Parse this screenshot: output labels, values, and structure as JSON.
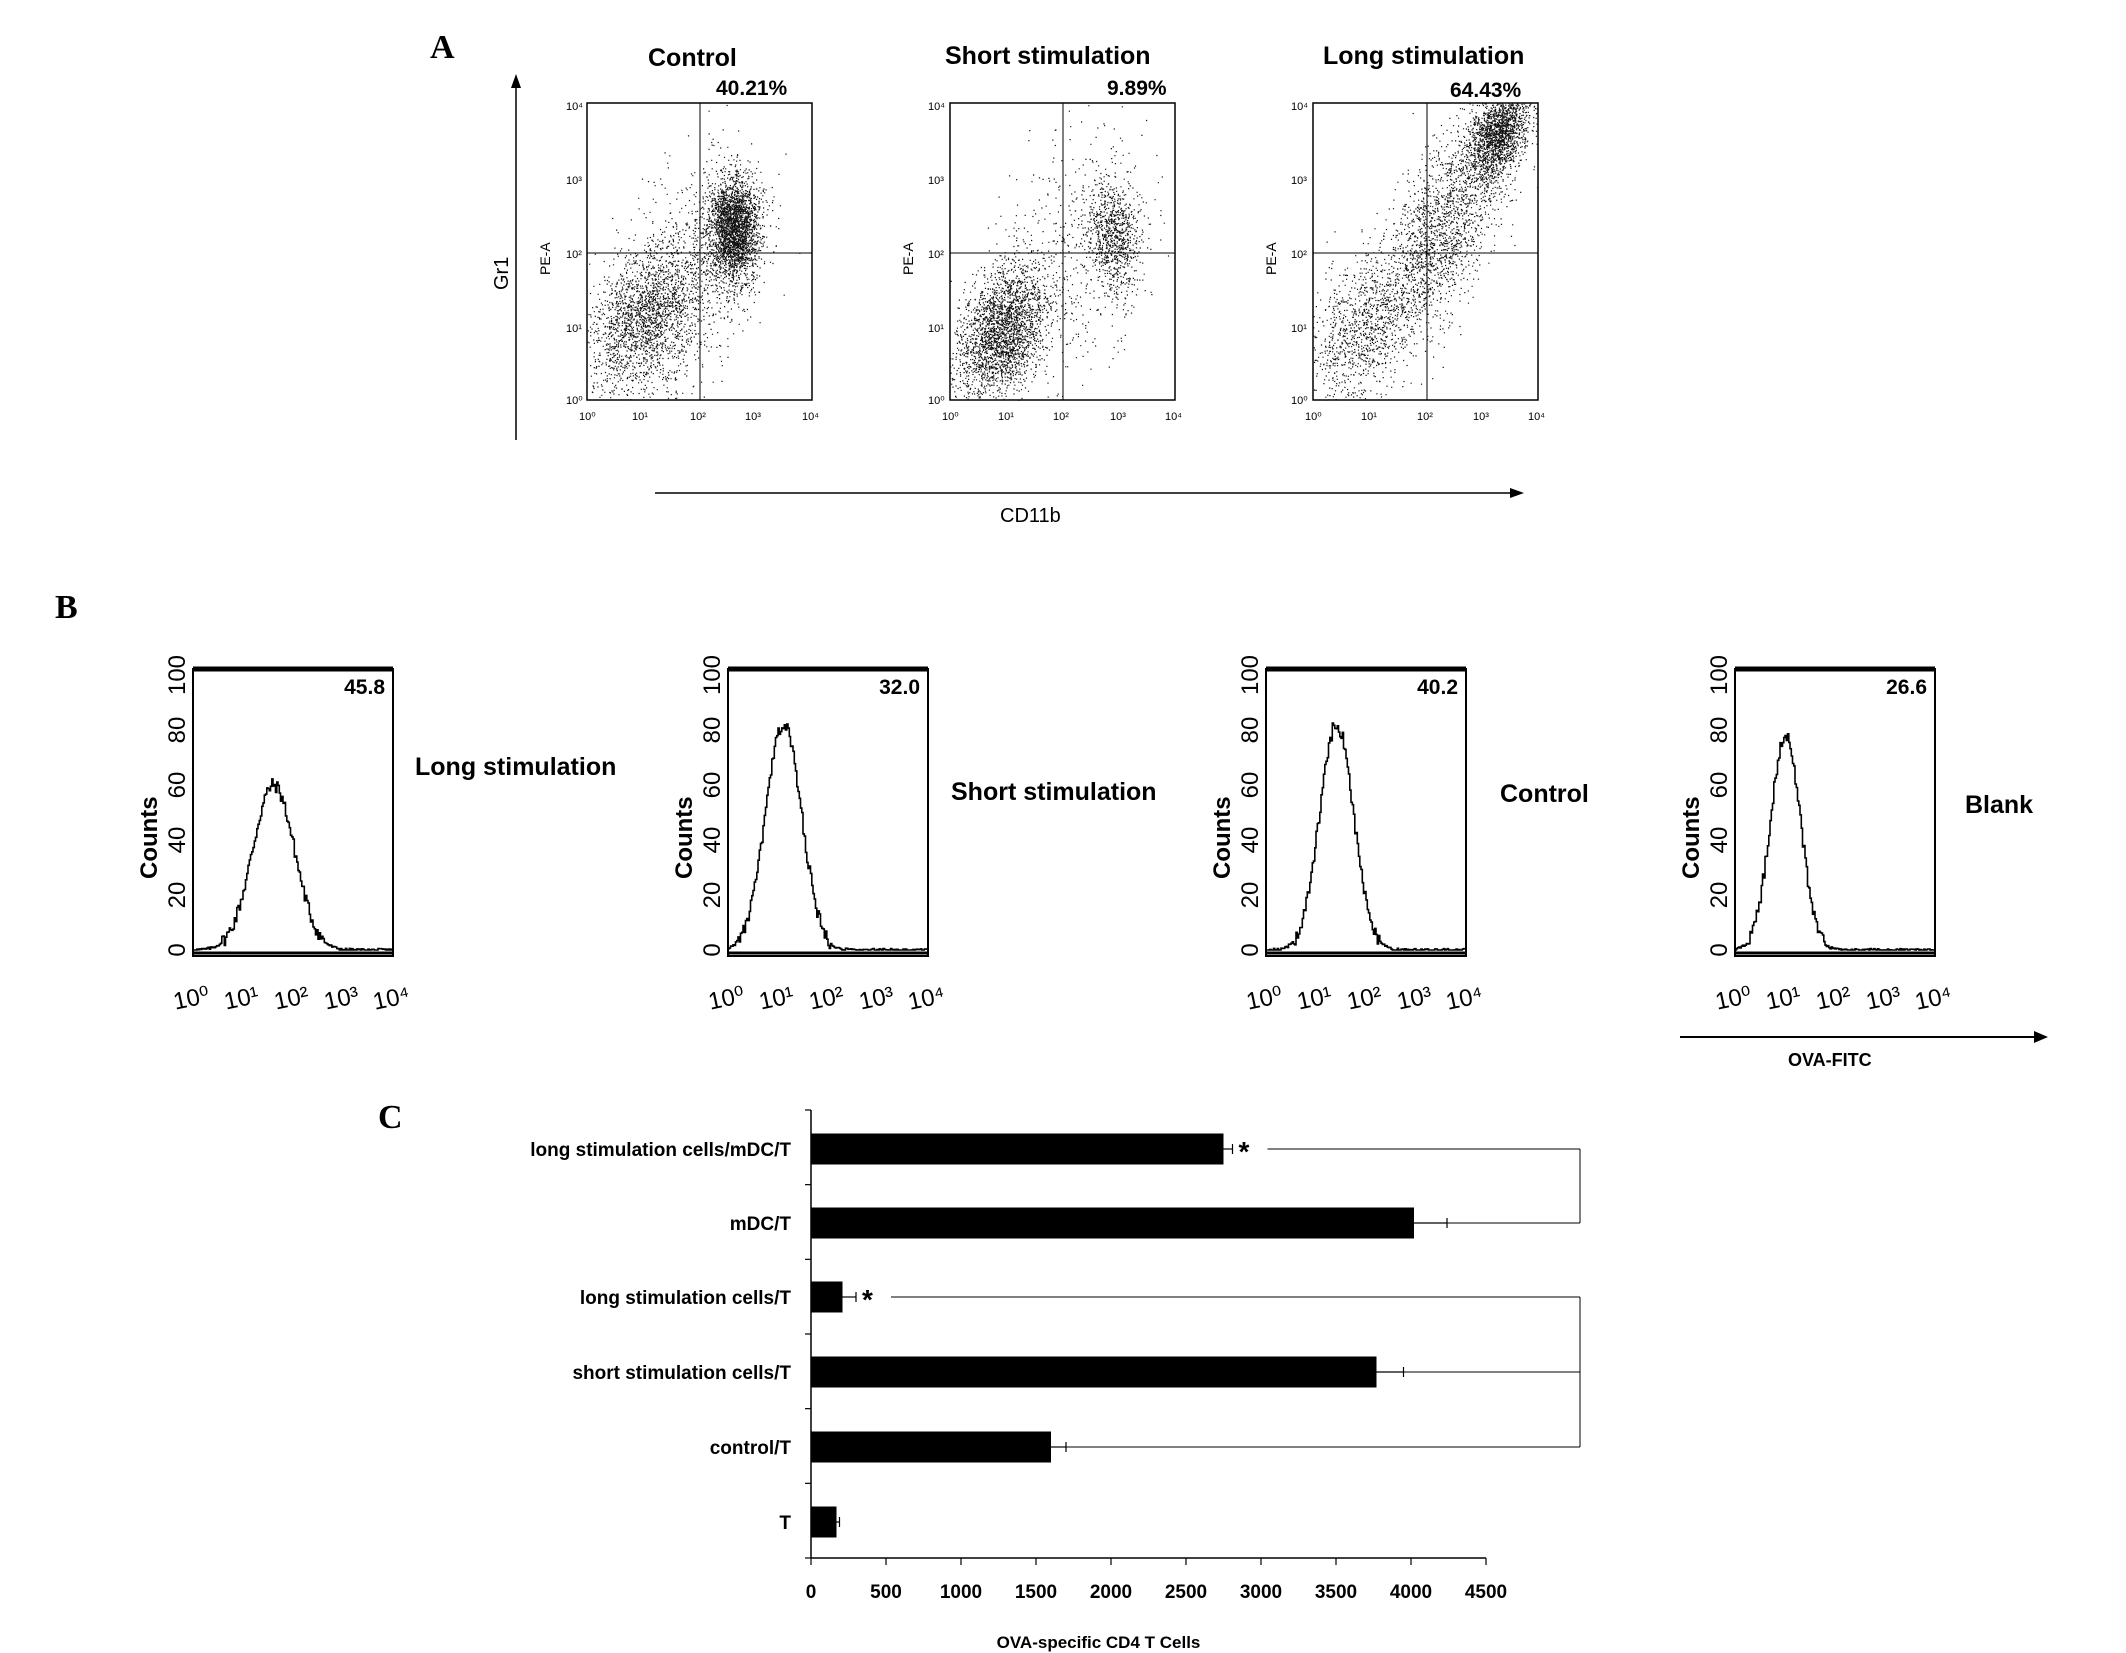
{
  "panel_labels": {
    "a": "A",
    "b": "B",
    "c": "C"
  },
  "panel_a": {
    "y_axis_label": "Gr1",
    "x_axis_label": "CD11b",
    "detector_label": "PE-A",
    "tick_labels": [
      "10⁰",
      "10¹",
      "10²",
      "10³",
      "10⁴"
    ],
    "plots": [
      {
        "title": "Control",
        "percent": "40.21%"
      },
      {
        "title": "Short  stimulation",
        "percent": "9.89%"
      },
      {
        "title": "Long stimulation",
        "percent": "64.43%"
      }
    ]
  },
  "panel_b": {
    "y_axis_label": "Counts",
    "x_axis_label": "OVA-FITC",
    "y_tick_labels": [
      "0",
      "20",
      "40",
      "60",
      "80",
      "100"
    ],
    "x_tick_labels": [
      "10⁰",
      "10¹",
      "10²",
      "10³",
      "10⁴"
    ],
    "histograms": [
      {
        "name": "Long stimulation",
        "value": "45.8",
        "peak_log": 1.6,
        "peak_count": 60,
        "width": 0.42
      },
      {
        "name": "Short  stimulation",
        "value": "32.0",
        "peak_log": 1.1,
        "peak_count": 82,
        "width": 0.36
      },
      {
        "name": "Control",
        "value": "40.2",
        "peak_log": 1.4,
        "peak_count": 82,
        "width": 0.34
      },
      {
        "name": "Blank",
        "value": "26.6",
        "peak_log": 1.0,
        "peak_count": 78,
        "width": 0.3
      }
    ]
  },
  "chart_data": {
    "type": "bar",
    "orientation": "horizontal",
    "xlabel": "OVA-specific CD4 T Cells",
    "xlim": [
      0,
      4500
    ],
    "x_ticks": [
      0,
      500,
      1000,
      1500,
      2000,
      2500,
      3000,
      3500,
      4000,
      4500
    ],
    "categories": [
      "long stimulation cells/mDC/T",
      "mDC/T",
      "long stimulation cells/T",
      "short stimulation cells/T",
      "control/T",
      "T"
    ],
    "values": [
      2750,
      4020,
      210,
      3770,
      1600,
      170
    ],
    "errors": [
      60,
      220,
      90,
      180,
      100,
      20
    ],
    "significance": [
      "*",
      "",
      "*",
      "",
      "",
      ""
    ],
    "comparison_brackets": [
      {
        "from": "long stimulation cells/mDC/T",
        "to": "mDC/T"
      },
      {
        "from": "long stimulation cells/T",
        "to": "control/T"
      }
    ]
  }
}
